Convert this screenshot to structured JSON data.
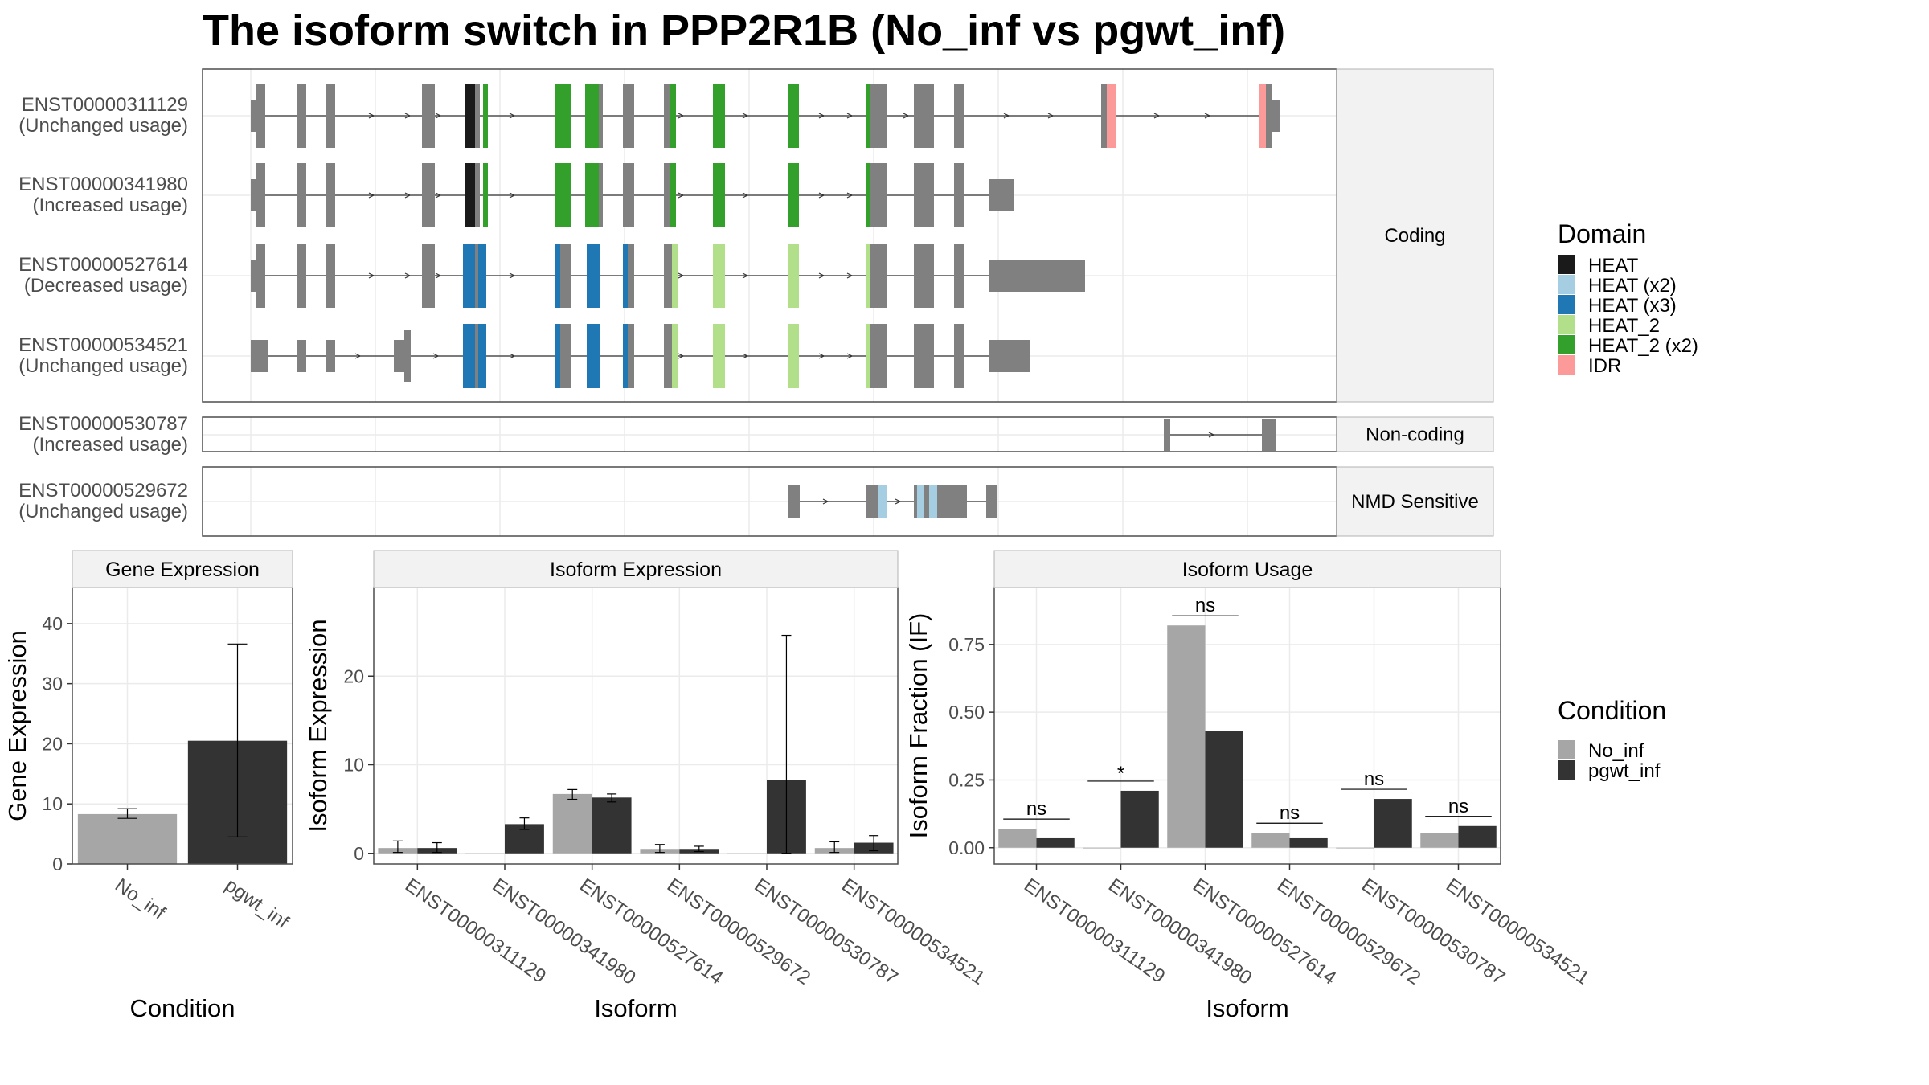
{
  "title": "The isoform switch in PPP2R1B (No_inf vs pgwt_inf)",
  "colors": {
    "intron_exon": "#808080",
    "HEAT": "#1a1a1a",
    "HEAT (x2)": "#a6cee3",
    "HEAT (x3)": "#1f78b4",
    "HEAT_2": "#b2df8a",
    "HEAT_2 (x2)": "#33a02c",
    "IDR": "#fb9a99",
    "No_inf": "#a6a6a6",
    "pgwt_inf": "#333333"
  },
  "structure": {
    "facets": [
      "Coding",
      "Non-coding",
      "NMD Sensitive"
    ],
    "transcripts": [
      {
        "id": "ENST00000311129",
        "usage": "(Unchanged usage)",
        "facet": "Coding"
      },
      {
        "id": "ENST00000341980",
        "usage": "(Increased usage)",
        "facet": "Coding"
      },
      {
        "id": "ENST00000527614",
        "usage": "(Decreased usage)",
        "facet": "Coding"
      },
      {
        "id": "ENST00000534521",
        "usage": "(Unchanged usage)",
        "facet": "Coding"
      },
      {
        "id": "ENST00000530787",
        "usage": "(Increased usage)",
        "facet": "Non-coding"
      },
      {
        "id": "ENST00000529672",
        "usage": "(Unchanged usage)",
        "facet": "NMD Sensitive"
      }
    ]
  },
  "domain_legend": {
    "title": "Domain",
    "items": [
      "HEAT",
      "HEAT (x2)",
      "HEAT (x3)",
      "HEAT_2",
      "HEAT_2 (x2)",
      "IDR"
    ]
  },
  "condition_legend": {
    "title": "Condition",
    "items": [
      "No_inf",
      "pgwt_inf"
    ]
  },
  "chart_data": [
    {
      "type": "bar",
      "title": "Gene Expression",
      "xlabel": "Condition",
      "ylabel": "Gene Expression",
      "categories": [
        "No_inf",
        "pgwt_inf"
      ],
      "values": [
        8.3,
        20.5
      ],
      "error_low": [
        7.6,
        4.5
      ],
      "error_high": [
        9.2,
        36.6
      ],
      "ylim": [
        0,
        46
      ],
      "yticks": [
        0,
        10,
        20,
        30,
        40
      ]
    },
    {
      "type": "bar",
      "title": "Isoform Expression",
      "xlabel": "Isoform",
      "ylabel": "Isoform Expression",
      "categories": [
        "ENST00000311129",
        "ENST00000341980",
        "ENST00000527614",
        "ENST00000529672",
        "ENST00000530787",
        "ENST00000534521"
      ],
      "series": [
        {
          "name": "No_inf",
          "values": [
            0.6,
            0.0,
            6.7,
            0.5,
            0.0,
            0.6
          ],
          "error_low": [
            0.1,
            0.0,
            6.1,
            0.1,
            0.0,
            0.1
          ],
          "error_high": [
            1.4,
            0.0,
            7.2,
            1.0,
            0.0,
            1.3
          ]
        },
        {
          "name": "pgwt_inf",
          "values": [
            0.6,
            3.3,
            6.3,
            0.5,
            8.3,
            1.2
          ],
          "error_low": [
            0.1,
            2.7,
            5.8,
            0.2,
            0.0,
            0.3
          ],
          "error_high": [
            1.2,
            4.0,
            6.7,
            0.8,
            24.6,
            2.0
          ]
        }
      ],
      "ylim": [
        -1.2,
        30
      ],
      "yticks": [
        0,
        10,
        20
      ]
    },
    {
      "type": "bar",
      "title": "Isoform Usage",
      "xlabel": "Isoform",
      "ylabel": "Isoform Fraction (IF)",
      "categories": [
        "ENST00000311129",
        "ENST00000341980",
        "ENST00000527614",
        "ENST00000529672",
        "ENST00000530787",
        "ENST00000534521"
      ],
      "series": [
        {
          "name": "No_inf",
          "values": [
            0.07,
            0.0,
            0.82,
            0.055,
            0.0,
            0.055
          ]
        },
        {
          "name": "pgwt_inf",
          "values": [
            0.035,
            0.21,
            0.43,
            0.035,
            0.18,
            0.08
          ]
        }
      ],
      "significance": [
        "ns",
        "*",
        "ns",
        "ns",
        "ns",
        "ns"
      ],
      "ylim": [
        -0.06,
        0.96
      ],
      "yticks": [
        "0.00",
        "0.25",
        "0.50",
        "0.75"
      ]
    }
  ]
}
